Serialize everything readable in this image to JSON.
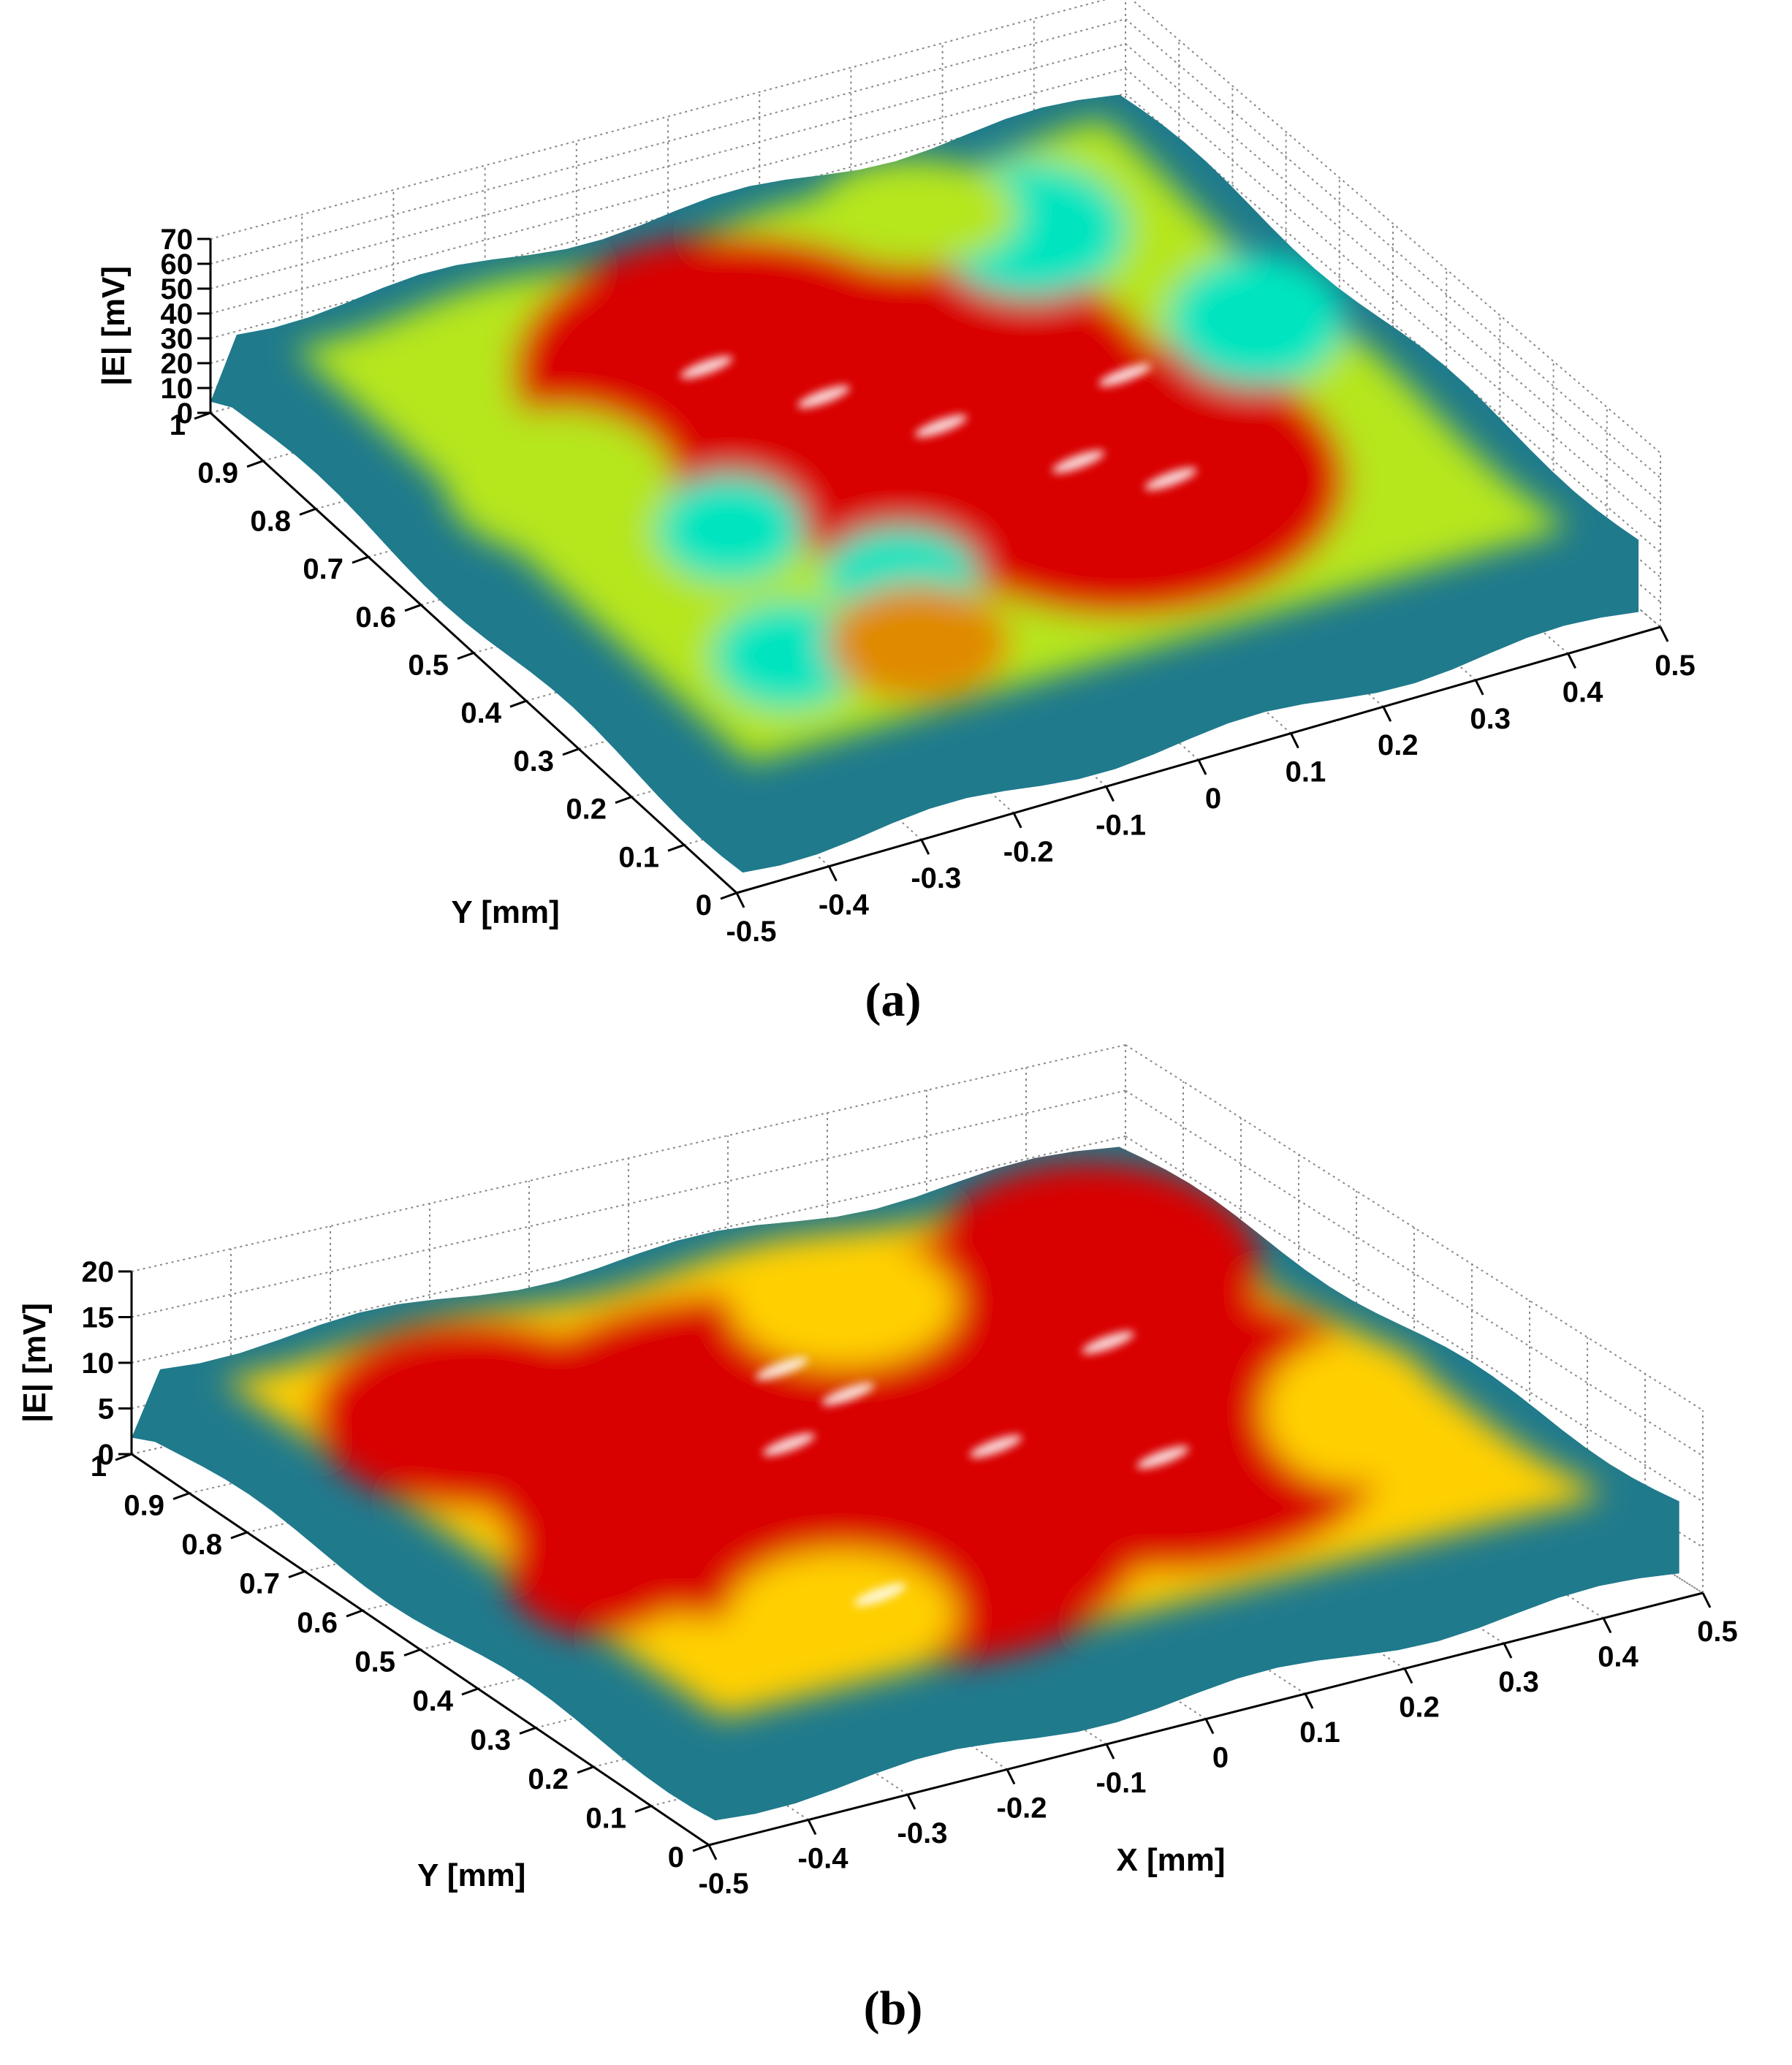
{
  "chart_data": [
    {
      "type": "surface",
      "panel_label": "(a)",
      "xlabel": "",
      "ylabel": "Y [mm]",
      "zlabel": "|E| [mV]",
      "xlim": [
        -0.5,
        0.5
      ],
      "ylim": [
        0,
        1
      ],
      "zlim": [
        0,
        70
      ],
      "x_ticks": [
        "-0.5",
        "-0.4",
        "-0.3",
        "-0.2",
        "-0.1",
        "0",
        "0.1",
        "0.2",
        "0.3",
        "0.4",
        "0.5"
      ],
      "y_ticks": [
        "0",
        "0.1",
        "0.2",
        "0.3",
        "0.4",
        "0.5",
        "0.6",
        "0.7",
        "0.8",
        "0.9",
        "1"
      ],
      "z_ticks": [
        "0",
        "10",
        "20",
        "30",
        "40",
        "50",
        "60",
        "70"
      ],
      "grid": true,
      "colormap": [
        "#08306b",
        "#1f7a8c",
        "#00e5c0",
        "#b6e61a",
        "#d90000",
        "#ffffff"
      ],
      "surface_peak": 62,
      "surface_edge": 5
    },
    {
      "type": "surface",
      "panel_label": "(b)",
      "xlabel": "X [mm]",
      "ylabel": "Y [mm]",
      "zlabel": "|E| [mV]",
      "xlim": [
        -0.5,
        0.5
      ],
      "ylim": [
        0,
        1
      ],
      "zlim": [
        0,
        20
      ],
      "x_ticks": [
        "-0.5",
        "-0.4",
        "-0.3",
        "-0.2",
        "-0.1",
        "0",
        "0.1",
        "0.2",
        "0.3",
        "0.4",
        "0.5"
      ],
      "y_ticks": [
        "0",
        "0.1",
        "0.2",
        "0.3",
        "0.4",
        "0.5",
        "0.6",
        "0.7",
        "0.8",
        "0.9",
        "1"
      ],
      "z_ticks": [
        "0",
        "5",
        "10",
        "15",
        "20"
      ],
      "grid": true,
      "colormap": [
        "#08306b",
        "#1f7a8c",
        "#a8e000",
        "#ffd000",
        "#d90000",
        "#ffffff"
      ],
      "surface_peak": 18,
      "surface_edge": 2
    }
  ]
}
